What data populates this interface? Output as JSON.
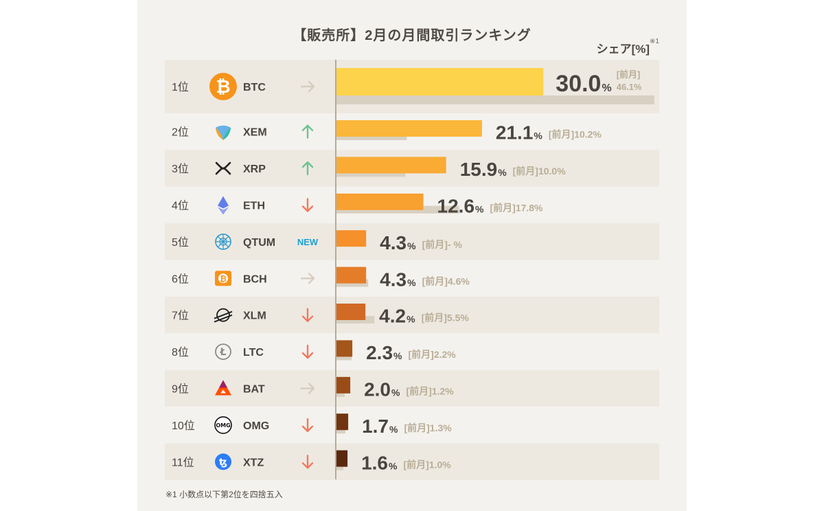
{
  "header": {
    "title": "【販売所】2月の月間取引ランキング",
    "share_label": "シェア[%]",
    "share_note": "※1"
  },
  "footnote": "※1 小数点以下第2位を四捨五入",
  "colors": {
    "panel_bg": "#f4f2ee",
    "row_alt_bg": "#ede9e1",
    "prev_bar": "#d8d0c2",
    "arrow_up": "#6cc490",
    "arrow_down": "#ef7a5e",
    "arrow_flat": "#d6cdbf",
    "new_badge": "#1ea0d2"
  },
  "chart_data": {
    "type": "bar",
    "orientation": "horizontal",
    "title": "【販売所】2月の月間取引ランキング",
    "value_label": "シェア[%]",
    "prev_label": "[前月]",
    "categories": [
      "BTC",
      "XEM",
      "XRP",
      "ETH",
      "QTUM",
      "BCH",
      "XLM",
      "LTC",
      "BAT",
      "OMG",
      "XTZ"
    ],
    "ranks": [
      "1位",
      "2位",
      "3位",
      "4位",
      "5位",
      "6位",
      "7位",
      "8位",
      "9位",
      "10位",
      "11位"
    ],
    "series": [
      {
        "name": "",
        "values": [
          30.0,
          21.1,
          15.9,
          12.6,
          4.3,
          4.3,
          4.2,
          2.3,
          2.0,
          1.7,
          1.6
        ],
        "labels": [
          "30.0",
          "21.1",
          "15.9",
          "12.6",
          "4.3",
          "4.3",
          "4.2",
          "2.3",
          "2.0",
          "1.7",
          "1.6"
        ]
      },
      {
        "name": "前月",
        "values": [
          46.1,
          10.2,
          10.0,
          17.8,
          null,
          4.6,
          5.5,
          2.2,
          1.2,
          1.3,
          1.0
        ],
        "labels": [
          "46.1%",
          "10.2%",
          "10.0%",
          "17.8%",
          "- %",
          "4.6%",
          "5.5%",
          "2.2%",
          "1.2%",
          "1.3%",
          "1.0%"
        ]
      }
    ],
    "trend": [
      "flat",
      "up",
      "up",
      "down",
      "new",
      "flat",
      "down",
      "down",
      "flat",
      "down",
      "down"
    ],
    "new_label": "NEW",
    "percent_sign": "%",
    "bar_colors": [
      "#fcd34a",
      "#fbb73a",
      "#f9ab34",
      "#f8a030",
      "#f6902a",
      "#e57d28",
      "#d06a24",
      "#a55619",
      "#9a4c17",
      "#713611",
      "#5a280d"
    ],
    "icons": [
      "bitcoin-icon",
      "nem-icon",
      "xrp-icon",
      "ethereum-icon",
      "qtum-icon",
      "bitcoin-cash-icon",
      "stellar-icon",
      "litecoin-icon",
      "bat-icon",
      "omg-icon",
      "tezos-icon"
    ],
    "xlim": [
      0,
      46.1
    ]
  }
}
